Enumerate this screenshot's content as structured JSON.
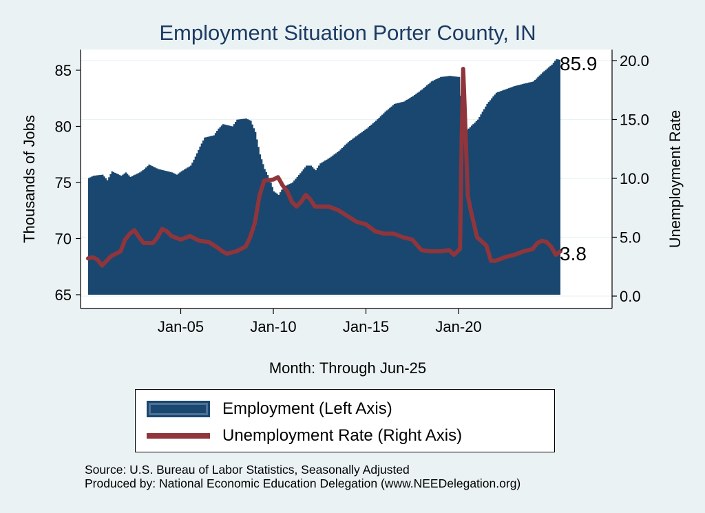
{
  "chart_data": {
    "type": "area+line",
    "title": "Employment Situation Porter  County, IN",
    "xlabel": "Month: Through Jun-25",
    "ylabel_left": "Thousands of Jobs",
    "ylabel_right": "Unemployment Rate",
    "x_range": [
      2000.0,
      2025.5
    ],
    "x_ticks": [
      {
        "value": 2005.0,
        "label": "Jan-05"
      },
      {
        "value": 2010.0,
        "label": "Jan-10"
      },
      {
        "value": 2015.0,
        "label": "Jan-15"
      },
      {
        "value": 2020.0,
        "label": "Jan-20"
      }
    ],
    "ylim_left": [
      65,
      86
    ],
    "yticks_left": [
      {
        "value": 65,
        "label": "65"
      },
      {
        "value": 70,
        "label": "70"
      },
      {
        "value": 75,
        "label": "75"
      },
      {
        "value": 80,
        "label": "80"
      },
      {
        "value": 85,
        "label": "85"
      }
    ],
    "ylim_right": [
      0,
      20
    ],
    "yticks_right": [
      {
        "value": 0,
        "label": "0.0"
      },
      {
        "value": 5,
        "label": "5.0"
      },
      {
        "value": 10,
        "label": "10.0"
      },
      {
        "value": 15,
        "label": "15.0"
      },
      {
        "value": 20,
        "label": "20.0"
      }
    ],
    "grid": true,
    "series": [
      {
        "name": "Employment (Left Axis)",
        "kind": "area",
        "axis": "left",
        "color": "#1a476f",
        "points": [
          [
            2000.0,
            75.4
          ],
          [
            2000.25,
            75.6
          ],
          [
            2000.75,
            75.7
          ],
          [
            2001.0,
            75.2
          ],
          [
            2001.25,
            76.0
          ],
          [
            2001.75,
            75.6
          ],
          [
            2002.0,
            75.9
          ],
          [
            2002.25,
            75.5
          ],
          [
            2002.75,
            75.9
          ],
          [
            2003.0,
            76.2
          ],
          [
            2003.25,
            76.6
          ],
          [
            2003.75,
            76.2
          ],
          [
            2004.0,
            76.1
          ],
          [
            2004.5,
            75.9
          ],
          [
            2004.75,
            75.7
          ],
          [
            2005.0,
            76.0
          ],
          [
            2005.5,
            76.5
          ],
          [
            2005.75,
            77.3
          ],
          [
            2006.0,
            78.2
          ],
          [
            2006.25,
            79.0
          ],
          [
            2006.75,
            79.2
          ],
          [
            2007.0,
            79.8
          ],
          [
            2007.25,
            80.2
          ],
          [
            2007.75,
            80.0
          ],
          [
            2008.0,
            80.6
          ],
          [
            2008.5,
            80.7
          ],
          [
            2008.75,
            80.5
          ],
          [
            2009.0,
            79.5
          ],
          [
            2009.25,
            77.5
          ],
          [
            2009.5,
            76.2
          ],
          [
            2009.75,
            75.4
          ],
          [
            2010.0,
            74.2
          ],
          [
            2010.25,
            73.9
          ],
          [
            2010.5,
            74.6
          ],
          [
            2011.0,
            75.0
          ],
          [
            2011.25,
            75.5
          ],
          [
            2011.5,
            76.0
          ],
          [
            2011.75,
            76.5
          ],
          [
            2012.0,
            76.5
          ],
          [
            2012.25,
            76.1
          ],
          [
            2012.5,
            76.7
          ],
          [
            2013.0,
            77.2
          ],
          [
            2013.5,
            77.8
          ],
          [
            2014.0,
            78.6
          ],
          [
            2014.5,
            79.2
          ],
          [
            2015.0,
            79.8
          ],
          [
            2015.5,
            80.5
          ],
          [
            2016.0,
            81.3
          ],
          [
            2016.5,
            82.0
          ],
          [
            2017.0,
            82.2
          ],
          [
            2017.5,
            82.7
          ],
          [
            2018.0,
            83.3
          ],
          [
            2018.5,
            84.0
          ],
          [
            2019.0,
            84.4
          ],
          [
            2019.5,
            84.5
          ],
          [
            2020.0,
            84.4
          ],
          [
            2020.25,
            79.4
          ],
          [
            2020.5,
            79.8
          ],
          [
            2021.0,
            80.6
          ],
          [
            2021.5,
            82.0
          ],
          [
            2022.0,
            83.0
          ],
          [
            2022.5,
            83.3
          ],
          [
            2023.0,
            83.6
          ],
          [
            2023.5,
            83.8
          ],
          [
            2024.0,
            84.0
          ],
          [
            2024.5,
            84.8
          ],
          [
            2025.0,
            85.5
          ],
          [
            2025.25,
            86.0
          ],
          [
            2025.5,
            85.9
          ]
        ]
      },
      {
        "name": "Unemployment Rate (Right Axis)",
        "kind": "line",
        "axis": "right",
        "color": "#90353b",
        "points": [
          [
            2000.0,
            3.2
          ],
          [
            2000.25,
            3.3
          ],
          [
            2000.5,
            3.1
          ],
          [
            2000.75,
            2.6
          ],
          [
            2001.0,
            3.0
          ],
          [
            2001.25,
            3.4
          ],
          [
            2001.5,
            3.6
          ],
          [
            2001.75,
            3.8
          ],
          [
            2002.0,
            4.8
          ],
          [
            2002.25,
            5.3
          ],
          [
            2002.5,
            5.6
          ],
          [
            2002.75,
            5.0
          ],
          [
            2003.0,
            4.5
          ],
          [
            2003.5,
            4.5
          ],
          [
            2003.75,
            5.0
          ],
          [
            2004.0,
            5.7
          ],
          [
            2004.25,
            5.5
          ],
          [
            2004.5,
            5.1
          ],
          [
            2005.0,
            4.8
          ],
          [
            2005.5,
            5.1
          ],
          [
            2006.0,
            4.7
          ],
          [
            2006.5,
            4.6
          ],
          [
            2007.0,
            4.1
          ],
          [
            2007.25,
            3.8
          ],
          [
            2007.5,
            3.6
          ],
          [
            2008.0,
            3.8
          ],
          [
            2008.5,
            4.2
          ],
          [
            2008.75,
            5.0
          ],
          [
            2009.0,
            6.2
          ],
          [
            2009.25,
            8.5
          ],
          [
            2009.5,
            9.8
          ],
          [
            2010.0,
            9.9
          ],
          [
            2010.25,
            10.1
          ],
          [
            2010.5,
            9.4
          ],
          [
            2010.75,
            8.9
          ],
          [
            2011.0,
            8.0
          ],
          [
            2011.25,
            7.6
          ],
          [
            2011.5,
            8.0
          ],
          [
            2011.75,
            8.6
          ],
          [
            2012.0,
            8.2
          ],
          [
            2012.25,
            7.6
          ],
          [
            2013.0,
            7.6
          ],
          [
            2013.5,
            7.3
          ],
          [
            2014.0,
            6.8
          ],
          [
            2014.5,
            6.3
          ],
          [
            2015.0,
            6.1
          ],
          [
            2015.5,
            5.5
          ],
          [
            2016.0,
            5.3
          ],
          [
            2016.5,
            5.3
          ],
          [
            2017.0,
            5.0
          ],
          [
            2017.5,
            4.8
          ],
          [
            2018.0,
            3.9
          ],
          [
            2018.5,
            3.8
          ],
          [
            2019.0,
            3.8
          ],
          [
            2019.5,
            3.9
          ],
          [
            2019.75,
            3.5
          ],
          [
            2020.0,
            3.9
          ],
          [
            2020.08,
            4.0
          ],
          [
            2020.17,
            13.5
          ],
          [
            2020.25,
            19.3
          ],
          [
            2020.33,
            16.0
          ],
          [
            2020.42,
            12.0
          ],
          [
            2020.5,
            8.5
          ],
          [
            2020.67,
            7.2
          ],
          [
            2021.0,
            5.0
          ],
          [
            2021.5,
            4.3
          ],
          [
            2021.75,
            3.0
          ],
          [
            2022.0,
            3.0
          ],
          [
            2022.5,
            3.3
          ],
          [
            2023.0,
            3.5
          ],
          [
            2023.5,
            3.8
          ],
          [
            2024.0,
            4.0
          ],
          [
            2024.25,
            4.5
          ],
          [
            2024.5,
            4.7
          ],
          [
            2024.75,
            4.6
          ],
          [
            2025.0,
            4.2
          ],
          [
            2025.25,
            3.5
          ],
          [
            2025.5,
            3.8
          ]
        ]
      }
    ],
    "end_labels": {
      "employment": "85.9",
      "unemployment": "3.8"
    },
    "legend": [
      {
        "label": "Employment (Left Axis)",
        "color": "#1a476f",
        "type": "area"
      },
      {
        "label": "Unemployment Rate (Right Axis)",
        "color": "#90353b",
        "type": "line"
      }
    ],
    "legend_position": "bottom"
  },
  "notes": {
    "source": "Source: U.S. Bureau of Labor Statistics, Seasonally Adjusted",
    "producer": "Produced by: National Economic Education Delegation (www.NEEDelegation.org)"
  }
}
